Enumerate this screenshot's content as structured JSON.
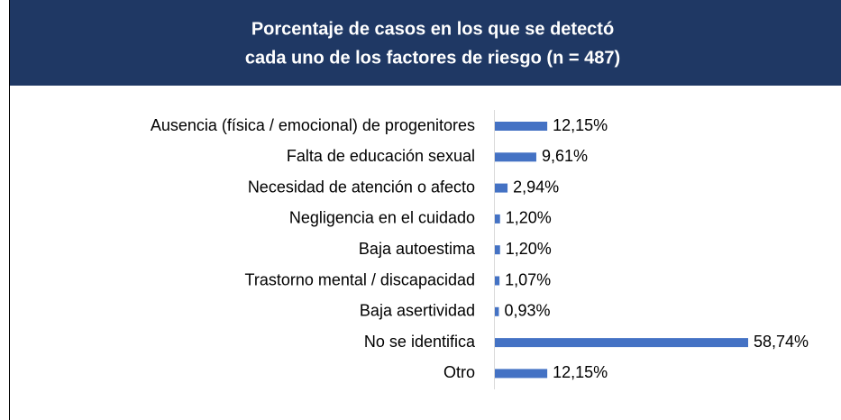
{
  "chart_data": {
    "type": "hbar",
    "title": [
      "Porcentaje de casos en los que se detectó",
      "cada uno de los factores de riesgo (n = 487)"
    ],
    "categories": [
      "Ausencia (física / emocional) de progenitores",
      "Falta de educación sexual",
      "Necesidad de atención o afecto",
      "Negligencia en el cuidado",
      "Baja autoestima",
      "Trastorno mental / discapacidad",
      "Baja asertividad",
      "No se identifica",
      "Otro"
    ],
    "values": [
      12.15,
      9.61,
      2.94,
      1.2,
      1.2,
      1.07,
      0.93,
      58.74,
      12.15
    ],
    "value_labels": [
      "12,15%",
      "9,61%",
      "2,94%",
      "1,20%",
      "1,20%",
      "1,07%",
      "0,93%",
      "58,74%",
      "12,15%"
    ],
    "color": "#4472c4",
    "title_background": "#1f3864"
  }
}
